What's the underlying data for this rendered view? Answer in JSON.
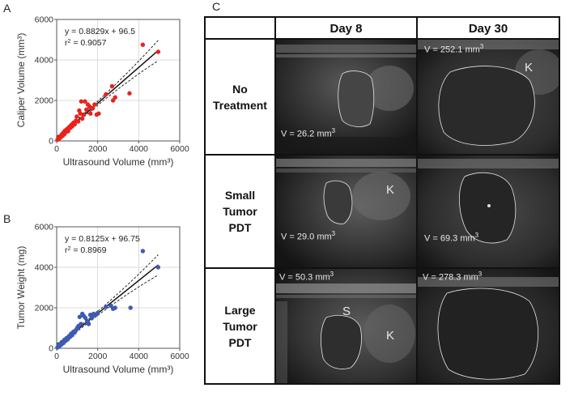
{
  "panels": {
    "a_letter": "A",
    "b_letter": "B",
    "c_letter": "C"
  },
  "colors": {
    "red_points": "#e8231c",
    "blue_points": "#3d5bb3"
  },
  "chart_data": [
    {
      "type": "scatter",
      "panel": "A",
      "xlabel": "Ultrasound Volume (mm³)",
      "ylabel": "Caliper Volume (mm³)",
      "xlim": [
        0,
        6000
      ],
      "ylim": [
        0,
        6000
      ],
      "xticks": [
        "0",
        "2000",
        "4000",
        "6000"
      ],
      "yticks": [
        "0",
        "2000",
        "4000",
        "6000"
      ],
      "grid": true,
      "equation": "y = 0.8829x + 96.5",
      "r2_prefix": "r",
      "r2_text": " = 0.9057",
      "fit": {
        "slope": 0.8829,
        "intercept": 96.5,
        "x_range": [
          0,
          4950
        ]
      },
      "points": [
        [
          40,
          60
        ],
        [
          80,
          140
        ],
        [
          120,
          100
        ],
        [
          160,
          220
        ],
        [
          200,
          180
        ],
        [
          250,
          300
        ],
        [
          300,
          260
        ],
        [
          330,
          420
        ],
        [
          380,
          340
        ],
        [
          420,
          520
        ],
        [
          460,
          450
        ],
        [
          520,
          600
        ],
        [
          560,
          480
        ],
        [
          620,
          700
        ],
        [
          660,
          640
        ],
        [
          720,
          800
        ],
        [
          760,
          720
        ],
        [
          820,
          900
        ],
        [
          880,
          820
        ],
        [
          940,
          1000
        ],
        [
          980,
          1200
        ],
        [
          1050,
          960
        ],
        [
          1100,
          1500
        ],
        [
          1150,
          1350
        ],
        [
          1200,
          1950
        ],
        [
          1250,
          1100
        ],
        [
          1300,
          1300
        ],
        [
          1380,
          1950
        ],
        [
          1450,
          1550
        ],
        [
          1520,
          1800
        ],
        [
          1600,
          1700
        ],
        [
          1650,
          1350
        ],
        [
          1750,
          1600
        ],
        [
          1850,
          1800
        ],
        [
          1950,
          1300
        ],
        [
          2050,
          1350
        ],
        [
          2400,
          2300
        ],
        [
          2700,
          2700
        ],
        [
          2750,
          2000
        ],
        [
          2850,
          2150
        ],
        [
          3550,
          2350
        ],
        [
          4200,
          4750
        ],
        [
          4950,
          4400
        ]
      ]
    },
    {
      "type": "scatter",
      "panel": "B",
      "xlabel": "Ultrasound Volume (mm³)",
      "ylabel": "Tumor Weight (mg)",
      "xlim": [
        0,
        6000
      ],
      "ylim": [
        0,
        6000
      ],
      "xticks": [
        "0",
        "2000",
        "4000",
        "6000"
      ],
      "yticks": [
        "0",
        "2000",
        "4000",
        "6000"
      ],
      "grid": true,
      "equation": "y = 0.8125x + 96.75",
      "r2_prefix": "r",
      "r2_text": " = 0.8969",
      "fit": {
        "slope": 0.8125,
        "intercept": 96.75,
        "x_range": [
          0,
          4950
        ]
      },
      "points": [
        [
          40,
          40
        ],
        [
          80,
          120
        ],
        [
          130,
          100
        ],
        [
          180,
          220
        ],
        [
          230,
          180
        ],
        [
          280,
          300
        ],
        [
          330,
          260
        ],
        [
          380,
          420
        ],
        [
          430,
          360
        ],
        [
          480,
          500
        ],
        [
          540,
          440
        ],
        [
          600,
          600
        ],
        [
          650,
          560
        ],
        [
          700,
          720
        ],
        [
          760,
          650
        ],
        [
          820,
          820
        ],
        [
          880,
          780
        ],
        [
          940,
          900
        ],
        [
          1000,
          1000
        ],
        [
          1060,
          1100
        ],
        [
          1120,
          1550
        ],
        [
          1180,
          1200
        ],
        [
          1250,
          1700
        ],
        [
          1320,
          1600
        ],
        [
          1400,
          1500
        ],
        [
          1480,
          1350
        ],
        [
          1560,
          1200
        ],
        [
          1640,
          1650
        ],
        [
          1720,
          1500
        ],
        [
          1800,
          1700
        ],
        [
          1900,
          1650
        ],
        [
          2000,
          1750
        ],
        [
          2400,
          2050
        ],
        [
          2650,
          2100
        ],
        [
          2750,
          1950
        ],
        [
          2850,
          2000
        ],
        [
          3600,
          2000
        ],
        [
          4200,
          4800
        ],
        [
          4950,
          4000
        ]
      ]
    }
  ],
  "table": {
    "columns": [
      "Day 8",
      "Day 30"
    ],
    "rows": [
      {
        "label": "No\nTreatment",
        "day8": {
          "vol_prefix": "V = 26.2 mm",
          "vol_sup": "3",
          "letters": []
        },
        "day30": {
          "vol_prefix": "V = 252.1 mm",
          "vol_sup": "3",
          "letters": [
            "K"
          ]
        }
      },
      {
        "label": "Small\nTumor\nPDT",
        "day8": {
          "vol_prefix": "V = 29.0 mm",
          "vol_sup": "3",
          "letters": [
            "K"
          ]
        },
        "day30": {
          "vol_prefix": "V = 69.3 mm",
          "vol_sup": "3",
          "letters": []
        }
      },
      {
        "label": "Large\nTumor\nPDT",
        "day8": {
          "vol_prefix": "V = 50.3 mm",
          "vol_sup": "3",
          "letters": [
            "S",
            "K"
          ]
        },
        "day30": {
          "vol_prefix": "V = 278.3 mm",
          "vol_sup": "3",
          "letters": []
        }
      }
    ]
  }
}
